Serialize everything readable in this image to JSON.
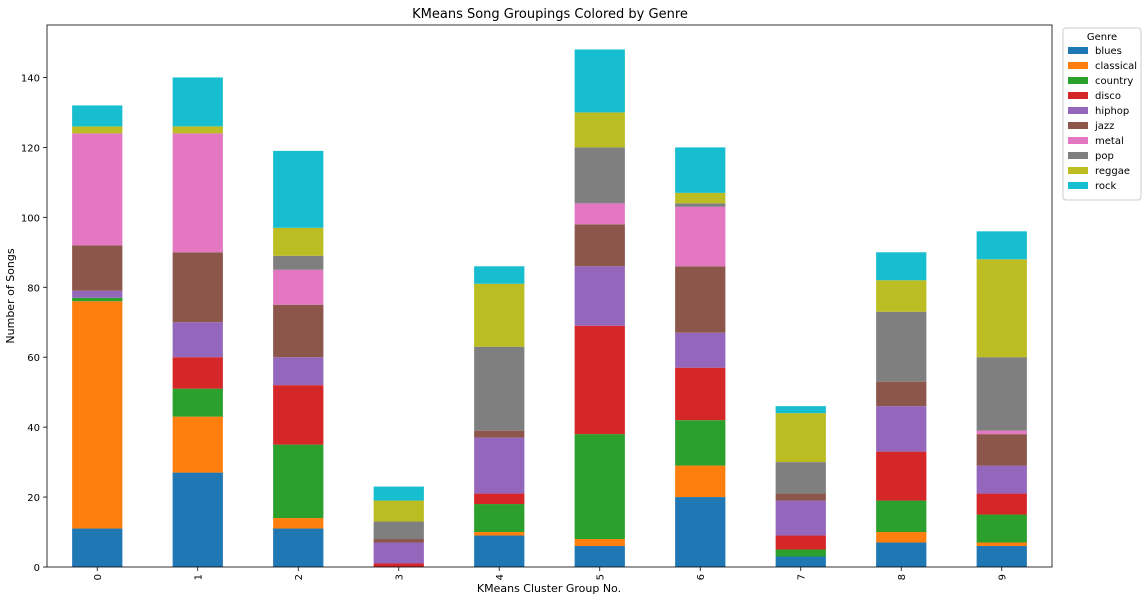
{
  "chart_data": {
    "type": "bar",
    "stacked": true,
    "title": "KMeans Song Groupings Colored by Genre",
    "xlabel": "KMeans Cluster Group No.",
    "ylabel": "Number of Songs",
    "ylim": [
      0,
      155
    ],
    "yticks": [
      0,
      20,
      40,
      60,
      80,
      100,
      120,
      140
    ],
    "grid": false,
    "legend_title": "Genre",
    "legend_position": "outside-top-right",
    "categories": [
      "0",
      "1",
      "2",
      "3",
      "4",
      "5",
      "6",
      "7",
      "8",
      "9"
    ],
    "series": [
      {
        "name": "blues",
        "color": "#1f77b4",
        "values": [
          11,
          27,
          11,
          0,
          9,
          6,
          20,
          3,
          7,
          6
        ]
      },
      {
        "name": "classical",
        "color": "#ff7f0e",
        "values": [
          65,
          16,
          3,
          0,
          1,
          2,
          9,
          0,
          3,
          1
        ]
      },
      {
        "name": "country",
        "color": "#2ca02c",
        "values": [
          1,
          8,
          21,
          0,
          8,
          30,
          13,
          2,
          9,
          8
        ]
      },
      {
        "name": "disco",
        "color": "#d62728",
        "values": [
          0,
          9,
          17,
          1,
          3,
          31,
          15,
          4,
          14,
          6
        ]
      },
      {
        "name": "hiphop",
        "color": "#9467bd",
        "values": [
          2,
          10,
          8,
          6,
          16,
          17,
          10,
          10,
          13,
          8
        ]
      },
      {
        "name": "jazz",
        "color": "#8c564b",
        "values": [
          13,
          20,
          15,
          1,
          2,
          12,
          19,
          2,
          7,
          9
        ]
      },
      {
        "name": "metal",
        "color": "#e377c2",
        "values": [
          32,
          34,
          10,
          0,
          0,
          6,
          17,
          0,
          0,
          1
        ]
      },
      {
        "name": "pop",
        "color": "#7f7f7f",
        "values": [
          0,
          0,
          4,
          5,
          24,
          16,
          1,
          9,
          20,
          21
        ]
      },
      {
        "name": "reggae",
        "color": "#bcbd22",
        "values": [
          2,
          2,
          8,
          6,
          18,
          10,
          3,
          14,
          9,
          28
        ]
      },
      {
        "name": "rock",
        "color": "#17becf",
        "values": [
          6,
          14,
          22,
          4,
          5,
          18,
          13,
          2,
          8,
          8
        ]
      }
    ]
  }
}
